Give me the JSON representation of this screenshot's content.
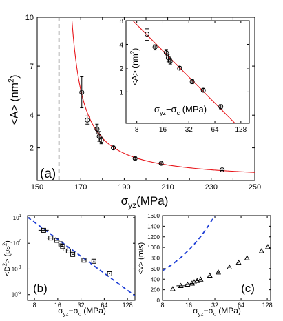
{
  "colors": {
    "fit": "#e8161b",
    "dashed": "#1f3fd6",
    "marker": "#000000",
    "vline": "#888888"
  },
  "chart_data": [
    {
      "type": "scatter",
      "panel_label": "(a)",
      "xlabel": {
        "main": "σ",
        "sub": "yz",
        "rest": "(MPa)"
      },
      "ylabel": {
        "main": "<A> (nm",
        "sup": "2",
        "rest": ")"
      },
      "xlim": [
        150,
        250
      ],
      "ylim": [
        0,
        10
      ],
      "xticks": [
        150,
        160,
        170,
        180,
        190,
        200,
        210,
        220,
        230,
        240,
        250
      ],
      "yticks": [
        2,
        4,
        7,
        10
      ],
      "critical_line_x": 160,
      "series": [
        {
          "points": [
            {
              "x": 170.5,
              "y": 5.4,
              "err": 0.95
            },
            {
              "x": 173.0,
              "y": 3.7,
              "err": 0.25
            },
            {
              "x": 177.5,
              "y": 3.15,
              "err": 0.3
            },
            {
              "x": 178.5,
              "y": 2.7,
              "err": 0.3
            },
            {
              "x": 179.5,
              "y": 2.45,
              "err": 0.2
            },
            {
              "x": 185.0,
              "y": 2.0,
              "err": 0.1
            },
            {
              "x": 195.0,
              "y": 1.35,
              "err": 0.08
            },
            {
              "x": 207.0,
              "y": 1.05,
              "err": 0.05
            },
            {
              "x": 235.0,
              "y": 0.65,
              "err": 0.04
            }
          ]
        },
        {
          "fit_curve": {
            "x0": 160,
            "amplitude": 70,
            "exponent": 1.1,
            "x_range": [
              166,
              250
            ]
          }
        }
      ]
    },
    {
      "type": "scatter",
      "inset": true,
      "xscale": "log",
      "yscale": "log",
      "xlabel": {
        "main": "σ",
        "sub": "yz",
        "rest": "−σ",
        "sub2": "c",
        "rest2": " (MPa)"
      },
      "ylabel": {
        "main": "<A> (nm",
        "sup": "2",
        "rest": ")"
      },
      "xlim": [
        6,
        160
      ],
      "ylim": [
        0.4,
        8
      ],
      "xtick_labels": [
        "8",
        "16",
        "32",
        "64",
        "128"
      ],
      "ytick_labels": [
        "1",
        "2",
        "4",
        "8"
      ],
      "xticks": [
        8,
        16,
        32,
        64,
        128
      ],
      "yticks": [
        1,
        2,
        4,
        8
      ],
      "series": [
        {
          "points": [
            {
              "x": 10.5,
              "y": 5.4,
              "elo": 4.5,
              "ehi": 6.3
            },
            {
              "x": 13.0,
              "y": 3.7,
              "elo": 3.4,
              "ehi": 3.95
            },
            {
              "x": 17.5,
              "y": 3.15,
              "elo": 2.85,
              "ehi": 3.45
            },
            {
              "x": 18.5,
              "y": 2.7,
              "elo": 2.4,
              "ehi": 3.0
            },
            {
              "x": 19.5,
              "y": 2.45,
              "elo": 2.25,
              "ehi": 2.65
            },
            {
              "x": 25.0,
              "y": 2.0,
              "elo": 1.9,
              "ehi": 2.1
            },
            {
              "x": 35.0,
              "y": 1.35,
              "elo": 1.27,
              "ehi": 1.43
            },
            {
              "x": 47.0,
              "y": 1.05,
              "elo": 1.0,
              "ehi": 1.1
            },
            {
              "x": 75.0,
              "y": 0.65,
              "elo": 0.61,
              "ehi": 0.69
            }
          ]
        },
        {
          "fit_curve": {
            "amplitude": 70,
            "exponent": 1.1,
            "x_range": [
              6,
              160
            ]
          }
        }
      ]
    },
    {
      "type": "scatter",
      "panel_label": "(b)",
      "xscale": "log",
      "yscale": "log",
      "xlabel": {
        "main": "σ",
        "sub": "yz",
        "rest": "−σ",
        "sub2": "c",
        "rest2": " (MPa)"
      },
      "ylabel": {
        "main": "<D",
        "sup": "2",
        "rest": "> (ps",
        "sup2": "2",
        "rest2": ")"
      },
      "xlim": [
        6.5,
        160
      ],
      "ylim": [
        0.006,
        12
      ],
      "xtick_labels": [
        "8",
        "16",
        "32",
        "64",
        "128"
      ],
      "xticks": [
        8,
        16,
        32,
        64,
        128
      ],
      "ytick_labels": [
        {
          "base": "10",
          "exp": "1"
        },
        {
          "base": "10",
          "exp": "0"
        },
        {
          "base": "10",
          "exp": "-1"
        },
        {
          "base": "10",
          "exp": "-2"
        }
      ],
      "yticks": [
        10,
        1,
        0.1,
        0.01
      ],
      "marker": "square",
      "series": [
        {
          "points": [
            {
              "x": 10.5,
              "y": 3.2,
              "xlo": 9.0,
              "xhi": 12.2
            },
            {
              "x": 13.0,
              "y": 1.6,
              "xlo": 11.5,
              "xhi": 14.7
            },
            {
              "x": 15.5,
              "y": 1.3,
              "xlo": 14.2,
              "xhi": 16.9
            },
            {
              "x": 17.5,
              "y": 0.95,
              "xlo": 16.5,
              "xhi": 18.5
            },
            {
              "x": 18.5,
              "y": 0.75,
              "xlo": 17.7,
              "xhi": 19.3
            },
            {
              "x": 20.0,
              "y": 0.6,
              "xlo": 19.2,
              "xhi": 20.8
            },
            {
              "x": 22.0,
              "y": 0.5,
              "xlo": 21.3,
              "xhi": 22.7
            },
            {
              "x": 25.0,
              "y": 0.37,
              "xlo": 24.3,
              "xhi": 25.7
            },
            {
              "x": 35.0,
              "y": 0.22,
              "xlo": 34.0,
              "xhi": 36.0
            },
            {
              "x": 47.0,
              "y": 0.2,
              "xlo": 46.0,
              "xhi": 48.0
            },
            {
              "x": 75.0,
              "y": 0.065,
              "xlo": 74.0,
              "xhi": 76.0
            }
          ]
        },
        {
          "fit_line": {
            "style": "dashed",
            "amplitude": 640,
            "exponent": -2.2,
            "x_range": [
              6.5,
              160
            ]
          }
        }
      ]
    },
    {
      "type": "scatter",
      "panel_label": "(c)",
      "xscale": "log",
      "xlabel": {
        "main": "σ",
        "sub": "yz",
        "rest": "−σ",
        "sub2": "c",
        "rest2": " (MPa)"
      },
      "ylabel": {
        "main": "<v> (m/s)"
      },
      "xlim": [
        8,
        140
      ],
      "ylim": [
        0,
        1600
      ],
      "xtick_labels": [
        "8",
        "16",
        "32",
        "64",
        "128"
      ],
      "xticks": [
        8,
        16,
        32,
        64,
        128
      ],
      "ytick_labels": [
        "0",
        "200",
        "400",
        "600",
        "800",
        "1000",
        "1200",
        "1400",
        "1600"
      ],
      "yticks": [
        0,
        200,
        400,
        600,
        800,
        1000,
        1200,
        1400,
        1600
      ],
      "marker": "triangle",
      "series": [
        {
          "points": [
            {
              "x": 10.5,
              "y": 215,
              "xlo": 9.0,
              "xhi": 12.2
            },
            {
              "x": 13.0,
              "y": 275,
              "xlo": 11.6,
              "xhi": 14.6
            },
            {
              "x": 15.5,
              "y": 300,
              "xlo": 14.3,
              "xhi": 16.8
            },
            {
              "x": 17.5,
              "y": 320,
              "xlo": 16.5,
              "xhi": 18.5
            },
            {
              "x": 18.5,
              "y": 345,
              "xlo": 17.7,
              "xhi": 19.3
            },
            {
              "x": 20.0,
              "y": 370,
              "xlo": 19.2,
              "xhi": 20.8
            },
            {
              "x": 22.0,
              "y": 395,
              "xlo": 21.3,
              "xhi": 22.7
            },
            {
              "x": 28.0,
              "y": 470,
              "xlo": 27.3,
              "xhi": 28.7
            },
            {
              "x": 35.0,
              "y": 530,
              "xlo": 34.3,
              "xhi": 35.7
            },
            {
              "x": 47.0,
              "y": 625,
              "xlo": 46.3,
              "xhi": 47.7
            },
            {
              "x": 60.0,
              "y": 715,
              "xlo": 59.3,
              "xhi": 60.7
            },
            {
              "x": 75.0,
              "y": 800,
              "xlo": 74.3,
              "xhi": 75.7
            },
            {
              "x": 110.0,
              "y": 930,
              "xlo": 109.0,
              "xhi": 111.0
            },
            {
              "x": 130.0,
              "y": 1010,
              "xlo": 129.0,
              "xhi": 131.0
            }
          ]
        },
        {
          "fit_line": {
            "style": "dashed",
            "amplitude": 24,
            "exponent": 0.76,
            "x_range": [
              8,
              140
            ]
          }
        }
      ]
    }
  ]
}
